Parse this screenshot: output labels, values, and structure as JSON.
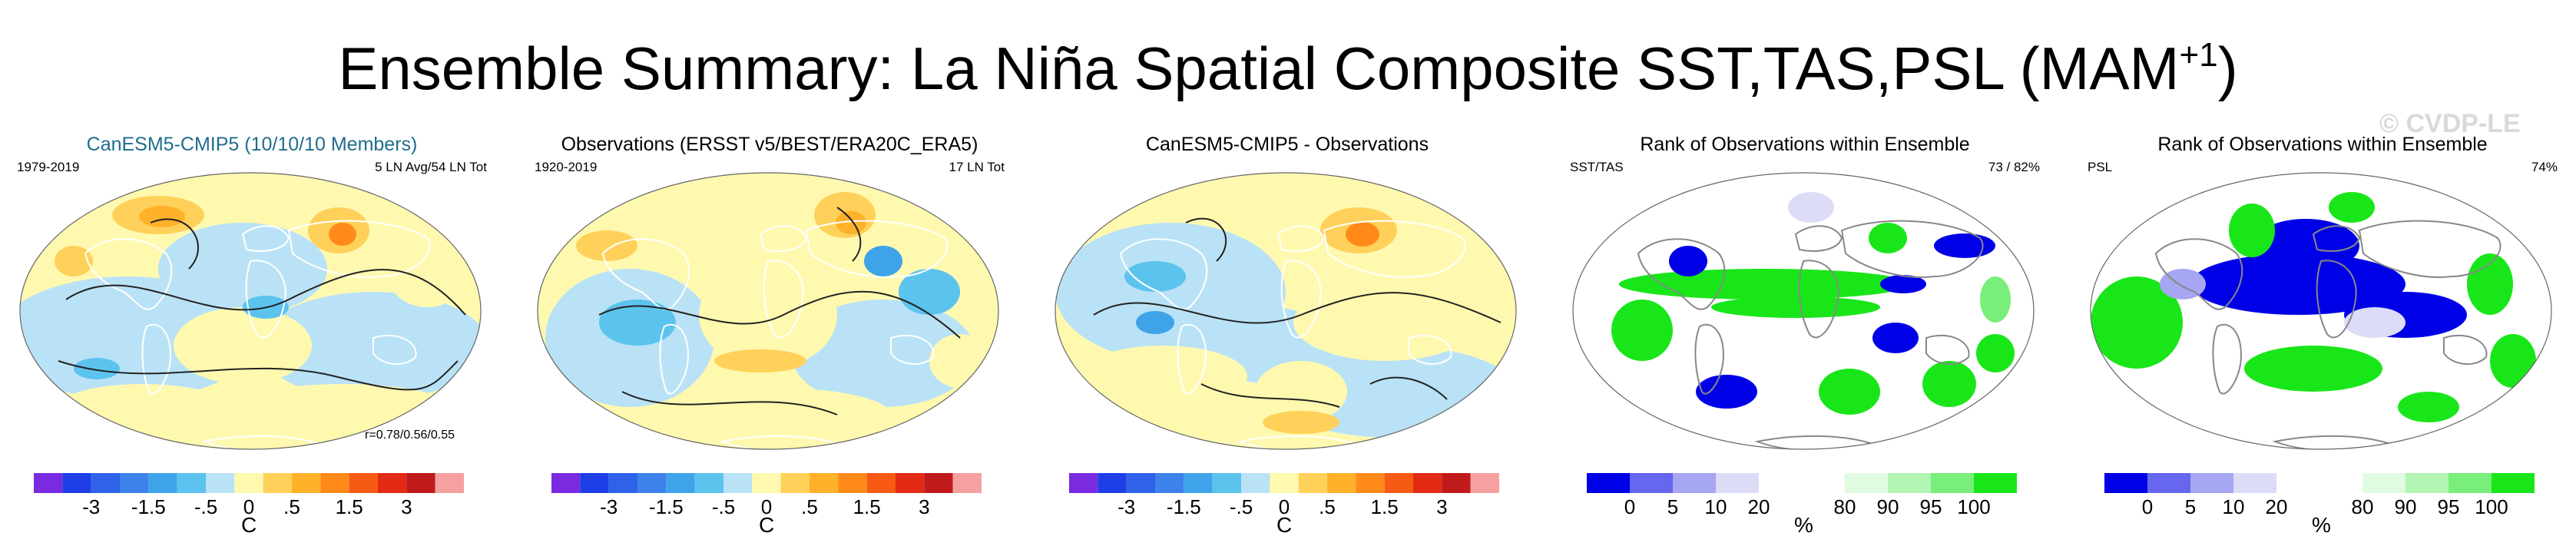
{
  "title": {
    "main": "Ensemble Summary: La Niña Spatial Composite SST,TAS,PSL (MAM",
    "superscript": "+1",
    "suffix": ")"
  },
  "watermark": "© CVDP-LE",
  "panels": [
    {
      "title": "CanESM5-CMIP5 (10/10/10 Members)",
      "left_label": "1979-2019",
      "right_label": "5 LN Avg/54 LN Tot",
      "corr_label": "r=0.78/0.56/0.55",
      "unit": "C",
      "colorbar": "temp"
    },
    {
      "title": "Observations (ERSST v5/BEST/ERA20C_ERA5)",
      "left_label": "1920-2019",
      "right_label": "17 LN Tot",
      "unit": "C",
      "colorbar": "temp"
    },
    {
      "title": "CanESM5-CMIP5 - Observations",
      "unit": "C",
      "colorbar": "temp"
    },
    {
      "title": "Rank of Observations within Ensemble",
      "left_label": "SST/TAS",
      "right_label": "73 /  82%",
      "unit": "%",
      "colorbar": "rank"
    },
    {
      "title": "Rank of Observations within Ensemble",
      "left_label": "PSL",
      "right_label": "74%",
      "unit": "%",
      "colorbar": "rank"
    }
  ],
  "colorbars": {
    "temp": {
      "colors": [
        "#7a2be0",
        "#1e3fe6",
        "#2f62e8",
        "#3d82ea",
        "#3fa3ea",
        "#5cc3ef",
        "#b9e2f6",
        "#fff9b0",
        "#ffd15a",
        "#ffb12a",
        "#ff8a1a",
        "#f75a12",
        "#e22a14",
        "#c11a1a",
        "#f6a0a0"
      ],
      "labels": [
        {
          "text": "-3",
          "boundary": 2
        },
        {
          "text": "-1.5",
          "boundary": 4
        },
        {
          "text": "-.5",
          "boundary": 6
        },
        {
          "text": "0",
          "boundary": 7.5
        },
        {
          "text": ".5",
          "boundary": 9
        },
        {
          "text": "1.5",
          "boundary": 11
        },
        {
          "text": "3",
          "boundary": 13
        }
      ]
    },
    "rank": {
      "colors": [
        "#0000e6",
        "#6666ee",
        "#a6a6f2",
        "#dcdcf8",
        "#ffffff",
        "#ffffff",
        "#e0fbe0",
        "#b3f5b3",
        "#7aee7a",
        "#19e619"
      ],
      "labels": [
        {
          "text": "0",
          "boundary": 1
        },
        {
          "text": "5",
          "boundary": 2
        },
        {
          "text": "10",
          "boundary": 3
        },
        {
          "text": "20",
          "boundary": 4
        },
        {
          "text": "80",
          "boundary": 6
        },
        {
          "text": "90",
          "boundary": 7
        },
        {
          "text": "95",
          "boundary": 8
        },
        {
          "text": "100",
          "boundary": 9
        }
      ]
    }
  }
}
